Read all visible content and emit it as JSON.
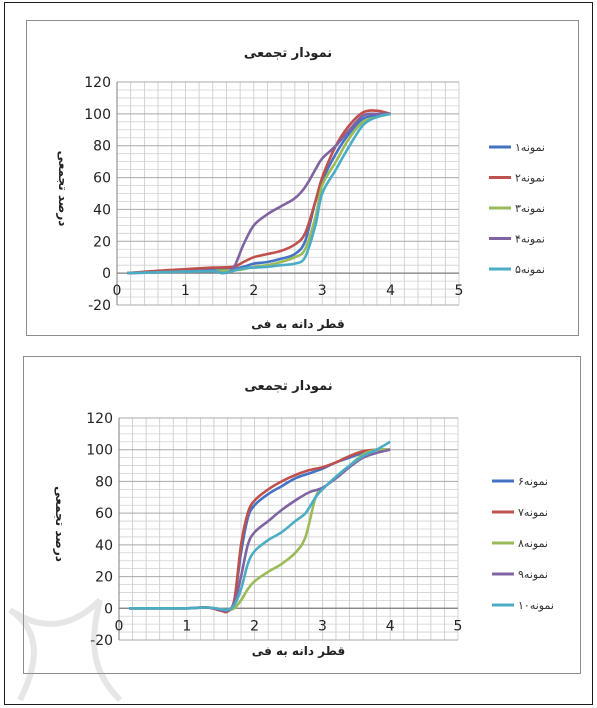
{
  "chart_data": [
    {
      "type": "line",
      "title": "نمودار تجمعی",
      "xlabel": "قطر دانه به فی",
      "ylabel": "درصد تجمعی",
      "xlim": [
        0,
        5
      ],
      "ylim": [
        -20,
        120
      ],
      "xticks": [
        "0",
        "1",
        "2",
        "3",
        "4",
        "5"
      ],
      "yticks": [
        "-20",
        "0",
        "20",
        "40",
        "60",
        "80",
        "100",
        "120"
      ],
      "grid": true,
      "legend": "right",
      "series": [
        {
          "name": "نمونه۱",
          "color": "#4472c4",
          "x": [
            0.15,
            0.6,
            1.0,
            1.4,
            1.7,
            1.85,
            2.0,
            2.2,
            2.4,
            2.6,
            2.75,
            2.9,
            3.0,
            3.2,
            3.4,
            3.6,
            3.8,
            4.0
          ],
          "y": [
            0,
            0.8,
            1.6,
            2.2,
            2.6,
            4,
            6,
            7,
            9,
            12,
            20,
            45,
            58,
            75,
            88,
            97,
            99,
            100
          ]
        },
        {
          "name": "نمونه۲",
          "color": "#c0504d",
          "x": [
            0.15,
            0.6,
            1.0,
            1.4,
            1.7,
            1.85,
            2.0,
            2.2,
            2.4,
            2.6,
            2.75,
            2.9,
            3.0,
            3.2,
            3.4,
            3.6,
            3.8,
            4.0
          ],
          "y": [
            0,
            1.5,
            2.5,
            3.5,
            4,
            7,
            10,
            12,
            14,
            18,
            25,
            45,
            60,
            80,
            93,
            101,
            102,
            100
          ]
        },
        {
          "name": "نمونه۳",
          "color": "#9bbb59",
          "x": [
            0.15,
            0.6,
            1.0,
            1.4,
            1.7,
            1.85,
            2.0,
            2.2,
            2.4,
            2.6,
            2.75,
            2.9,
            3.0,
            3.2,
            3.4,
            3.6,
            3.8,
            4.0
          ],
          "y": [
            0,
            0.5,
            1,
            1.5,
            1.8,
            2.5,
            4,
            5,
            7,
            10,
            15,
            35,
            55,
            70,
            85,
            95,
            98,
            100
          ]
        },
        {
          "name": "نمونه۴",
          "color": "#8064a2",
          "x": [
            0.15,
            0.6,
            1.0,
            1.4,
            1.55,
            1.7,
            1.85,
            2.0,
            2.2,
            2.4,
            2.6,
            2.75,
            2.9,
            3.0,
            3.2,
            3.4,
            3.6,
            3.8,
            4.0
          ],
          "y": [
            0,
            0.5,
            1,
            1.5,
            0,
            3,
            18,
            30,
            37,
            42,
            47,
            54,
            65,
            72,
            80,
            90,
            99,
            100,
            100
          ]
        },
        {
          "name": "نمونه۵",
          "color": "#4bacc6",
          "x": [
            0.15,
            0.6,
            1.0,
            1.4,
            1.55,
            1.7,
            1.85,
            2.0,
            2.2,
            2.4,
            2.6,
            2.75,
            2.9,
            3.0,
            3.2,
            3.4,
            3.6,
            3.8,
            4.0
          ],
          "y": [
            0,
            0.5,
            1,
            1.2,
            0,
            1.5,
            3,
            3.5,
            4,
            5,
            6,
            10,
            30,
            50,
            65,
            80,
            93,
            98,
            100
          ]
        }
      ]
    },
    {
      "type": "line",
      "title": "نمودار تجمعی",
      "xlabel": "قطر دانه به فی",
      "ylabel": "درصد تجمعی",
      "xlim": [
        0,
        5
      ],
      "ylim": [
        -20,
        120
      ],
      "xticks": [
        "0",
        "1",
        "2",
        "3",
        "4",
        "5"
      ],
      "yticks": [
        "-20",
        "0",
        "20",
        "40",
        "60",
        "80",
        "100",
        "120"
      ],
      "grid": true,
      "legend": "right",
      "series": [
        {
          "name": "نمونه۶",
          "color": "#4472c4",
          "x": [
            0.15,
            0.6,
            1.0,
            1.3,
            1.5,
            1.6,
            1.7,
            1.8,
            1.9,
            2.0,
            2.2,
            2.4,
            2.6,
            2.8,
            3.0,
            3.2,
            3.4,
            3.6,
            3.8,
            4.0
          ],
          "y": [
            0,
            0,
            0,
            0.5,
            -1,
            -1.5,
            5,
            35,
            57,
            65,
            72,
            77,
            82,
            85,
            88,
            92,
            95,
            98,
            100,
            100
          ]
        },
        {
          "name": "نمونه۷",
          "color": "#c0504d",
          "x": [
            0.15,
            0.6,
            1.0,
            1.3,
            1.5,
            1.6,
            1.7,
            1.8,
            1.9,
            2.0,
            2.2,
            2.4,
            2.6,
            2.8,
            3.0,
            3.2,
            3.4,
            3.6,
            3.8,
            4.0
          ],
          "y": [
            0,
            0,
            0,
            0.5,
            -1.5,
            -2,
            5,
            40,
            60,
            68,
            75,
            80,
            84,
            87,
            89,
            92,
            96,
            99,
            100,
            100
          ]
        },
        {
          "name": "نمونه۸",
          "color": "#9bbb59",
          "x": [
            0.15,
            0.6,
            1.0,
            1.3,
            1.5,
            1.6,
            1.7,
            1.8,
            1.9,
            2.0,
            2.2,
            2.4,
            2.6,
            2.75,
            2.9,
            3.0,
            3.2,
            3.4,
            3.6,
            3.8,
            4.0
          ],
          "y": [
            0,
            0,
            0,
            0.5,
            -0.5,
            -1,
            0,
            5,
            12,
            17,
            23,
            28,
            35,
            45,
            70,
            75,
            83,
            90,
            97,
            100,
            100
          ]
        },
        {
          "name": "نمونه۹",
          "color": "#8064a2",
          "x": [
            0.15,
            0.6,
            1.0,
            1.3,
            1.5,
            1.6,
            1.7,
            1.8,
            1.9,
            2.0,
            2.2,
            2.4,
            2.6,
            2.8,
            3.0,
            3.2,
            3.4,
            3.6,
            3.8,
            4.0
          ],
          "y": [
            0,
            0,
            0,
            0.5,
            -1,
            -1.5,
            3,
            20,
            40,
            48,
            55,
            62,
            68,
            73,
            76,
            82,
            89,
            95,
            98,
            100
          ]
        },
        {
          "name": "نمونه۱۰",
          "color": "#4bacc6",
          "x": [
            0.15,
            0.6,
            1.0,
            1.3,
            1.5,
            1.6,
            1.7,
            1.8,
            1.9,
            2.0,
            2.2,
            2.4,
            2.6,
            2.75,
            2.9,
            3.0,
            3.2,
            3.4,
            3.6,
            3.8,
            4.0
          ],
          "y": [
            0,
            0,
            0,
            0.5,
            -0.5,
            -1,
            2,
            12,
            28,
            36,
            43,
            48,
            55,
            60,
            70,
            75,
            83,
            90,
            96,
            100,
            105
          ]
        }
      ]
    }
  ]
}
